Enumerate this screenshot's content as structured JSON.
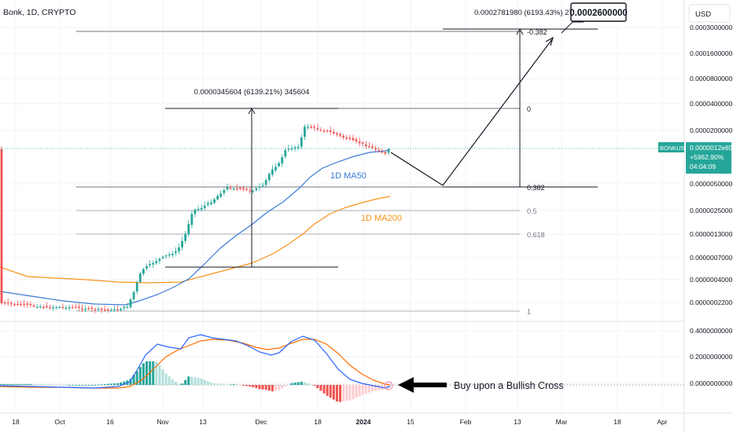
{
  "header": {
    "symbol_title": "Bonk, 1D, CRYPTO",
    "currency_button": "USD"
  },
  "price_axis": {
    "labels": [
      "0.0003000000",
      "0.0001600000",
      "0.0000800000",
      "0.0000400000",
      "0.0000200000",
      "0.0000050000",
      "0.0000025000",
      "0.0000013000",
      "0.0000007000",
      "0.0000004000",
      "0.0000002200"
    ],
    "current_symbol": "BONKUSD",
    "current_price": "0.0000012e654",
    "current_change": "+5962.90%",
    "current_countdown": "04:04:09",
    "accent_color": "#26a69a"
  },
  "macd_axis": {
    "labels": [
      "0.4000000000",
      "0.2000000000",
      "0.0000000000"
    ]
  },
  "time_axis": {
    "labels": [
      "18",
      "Oct",
      "16",
      "Nov",
      "13",
      "Dec",
      "18",
      "2024",
      "15",
      "Feb",
      "13",
      "Mar",
      "18",
      "Apr"
    ]
  },
  "annotations": {
    "measure_label": "0.0000345604 (6139.21%) 345604",
    "projection_label": "0.0002781980 (6193.43%) 2781980",
    "target_callout": "0.0002600000",
    "ma50_label": "1D MA50",
    "ma200_label": "1D MA200",
    "macd_note": "Buy upon a Bullish Cross"
  },
  "chart_data": {
    "type": "candlestick",
    "symbol": "BONKUSD",
    "timeframe": "1D",
    "y_scale": "log",
    "y_ticks": [
      0.0003,
      0.00016,
      8e-05,
      4e-05,
      2e-05,
      5e-06,
      2.5e-06,
      1.3e-06,
      7e-07,
      4e-07,
      2.2e-07
    ],
    "x_ticks": [
      "18",
      "Oct",
      "16",
      "Nov",
      "13",
      "Dec",
      "18",
      "2024",
      "15",
      "Feb",
      "13",
      "Mar",
      "18",
      "Apr"
    ],
    "fibonacci_levels": [
      {
        "label": "-0.382",
        "color": "#131722"
      },
      {
        "label": "0",
        "color": "#131722"
      },
      {
        "label": "0.382",
        "color": "#131722"
      },
      {
        "label": "0.5",
        "color": "#787b86"
      },
      {
        "label": "0.618",
        "color": "#787b86"
      },
      {
        "label": "1",
        "color": "#787b86"
      }
    ],
    "series": [
      {
        "name": "1D MA50",
        "color": "#3a7bd5"
      },
      {
        "name": "1D MA200",
        "color": "#f7931a"
      }
    ],
    "macd": {
      "macd_color": "#2962ff",
      "signal_color": "#ff6d00",
      "hist_pos_color": "#26a69a",
      "hist_neg_color": "#ef5350"
    },
    "colors": {
      "up": "#26a69a",
      "down": "#ef5350"
    }
  }
}
